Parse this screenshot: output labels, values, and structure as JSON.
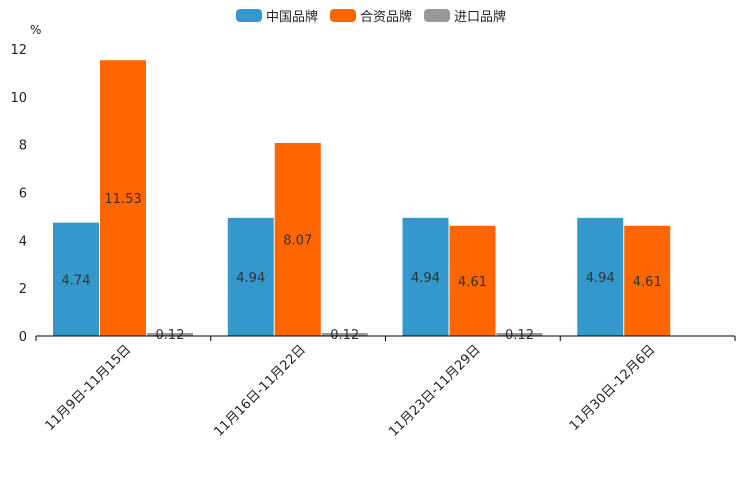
{
  "chart_data": {
    "type": "bar",
    "unit": "%",
    "categories": [
      "11月9日-11月15日",
      "11月16日-11月22日",
      "11月23日-11月29日",
      "11月30日-12月6日"
    ],
    "series": [
      {
        "name": "中国品牌",
        "color": "#3399cc",
        "values": [
          4.74,
          4.94,
          4.94,
          4.94
        ]
      },
      {
        "name": "合资品牌",
        "color": "#ff6600",
        "values": [
          11.53,
          8.07,
          4.61,
          4.61
        ]
      },
      {
        "name": "进口品牌",
        "color": "#999999",
        "values": [
          0.12,
          0.12,
          0.12,
          null
        ]
      }
    ],
    "ylim": [
      0,
      12
    ],
    "yticks": [
      0,
      2,
      4,
      6,
      8,
      10,
      12
    ],
    "legend": "top-center"
  }
}
